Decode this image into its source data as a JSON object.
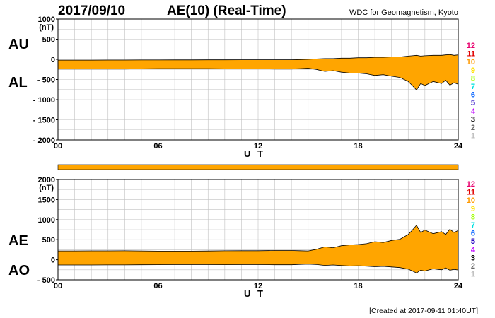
{
  "header": {
    "date": "2017/09/10",
    "title": "AE(10) (Real-Time)",
    "source": "WDC for Geomagnetism, Kyoto"
  },
  "footer": {
    "created": "[Created at 2017-09-11 01:40UT]"
  },
  "station_legend": [
    {
      "label": "12",
      "color": "#e8006e"
    },
    {
      "label": "11",
      "color": "#e00000"
    },
    {
      "label": "10",
      "color": "#ff9900"
    },
    {
      "label": "9",
      "color": "#ffe000"
    },
    {
      "label": "8",
      "color": "#a0ff00"
    },
    {
      "label": "7",
      "color": "#00e0e0"
    },
    {
      "label": "6",
      "color": "#0060ff"
    },
    {
      "label": "5",
      "color": "#2000c0"
    },
    {
      "label": "4",
      "color": "#c000ff"
    },
    {
      "label": "3",
      "color": "#000000"
    },
    {
      "label": "2",
      "color": "#666666"
    },
    {
      "label": "1",
      "color": "#c0c0c0"
    }
  ],
  "colors": {
    "fill": "#ffa500",
    "line": "#000000",
    "grid": "#c0c0c0"
  },
  "chart_data": [
    {
      "type": "area",
      "upper_label": "AU",
      "lower_label": "AL",
      "unit": "(nT)",
      "xlabel": "U T",
      "xticks": [
        "00",
        "06",
        "12",
        "18",
        "24"
      ],
      "xlim": [
        0,
        24
      ],
      "ylim": [
        -2000,
        1000
      ],
      "yticks": [
        "1000",
        "500",
        "0",
        "- 500",
        "- 1000",
        "- 1500",
        "- 2000"
      ],
      "grid": true,
      "x": [
        0,
        1,
        2,
        3,
        4,
        5,
        6,
        7,
        8,
        9,
        10,
        11,
        12,
        13,
        14,
        14.5,
        15,
        15.5,
        16,
        16.5,
        17,
        17.5,
        18,
        18.5,
        19,
        19.5,
        20,
        20.5,
        21,
        21.25,
        21.5,
        21.75,
        22,
        22.5,
        23,
        23.25,
        23.5,
        23.75,
        24
      ],
      "series": [
        {
          "values": [
            -20,
            -20,
            -20,
            -18,
            -18,
            -16,
            -16,
            -14,
            -14,
            -12,
            -12,
            -10,
            -10,
            -10,
            -10,
            -5,
            0,
            10,
            20,
            20,
            30,
            30,
            40,
            40,
            50,
            50,
            60,
            60,
            80,
            90,
            100,
            80,
            90,
            100,
            100,
            110,
            120,
            100,
            110
          ]
        },
        {
          "values": [
            -240,
            -240,
            -240,
            -240,
            -240,
            -235,
            -230,
            -230,
            -230,
            -230,
            -235,
            -235,
            -235,
            -240,
            -240,
            -230,
            -220,
            -250,
            -300,
            -280,
            -320,
            -340,
            -340,
            -360,
            -400,
            -380,
            -420,
            -450,
            -550,
            -650,
            -760,
            -600,
            -650,
            -550,
            -600,
            -520,
            -640,
            -580,
            -620
          ]
        }
      ]
    },
    {
      "type": "area",
      "upper_label": "AE",
      "lower_label": "AO",
      "unit": "(nT)",
      "xlabel": "U T",
      "xticks": [
        "00",
        "06",
        "12",
        "18",
        "24"
      ],
      "xlim": [
        0,
        24
      ],
      "ylim": [
        -500,
        2000
      ],
      "yticks": [
        "2000",
        "1500",
        "1000",
        "500",
        "0",
        "- 500"
      ],
      "grid": true,
      "x": [
        0,
        1,
        2,
        3,
        4,
        5,
        6,
        7,
        8,
        9,
        10,
        11,
        12,
        13,
        14,
        14.5,
        15,
        15.5,
        16,
        16.5,
        17,
        17.5,
        18,
        18.5,
        19,
        19.5,
        20,
        20.5,
        21,
        21.25,
        21.5,
        21.75,
        22,
        22.5,
        23,
        23.25,
        23.5,
        23.75,
        24
      ],
      "series": [
        {
          "values": [
            220,
            220,
            222,
            222,
            224,
            220,
            215,
            215,
            215,
            218,
            223,
            225,
            225,
            230,
            230,
            226,
            220,
            260,
            320,
            300,
            350,
            370,
            380,
            400,
            450,
            430,
            480,
            510,
            630,
            740,
            860,
            680,
            740,
            650,
            700,
            630,
            760,
            680,
            730
          ]
        },
        {
          "values": [
            -130,
            -130,
            -130,
            -129,
            -129,
            -125,
            -123,
            -122,
            -122,
            -121,
            -123,
            -122,
            -122,
            -125,
            -125,
            -117,
            -110,
            -120,
            -140,
            -130,
            -145,
            -155,
            -150,
            -160,
            -175,
            -165,
            -180,
            -195,
            -235,
            -280,
            -330,
            -260,
            -280,
            -225,
            -250,
            -205,
            -260,
            -240,
            -255
          ]
        }
      ]
    }
  ]
}
